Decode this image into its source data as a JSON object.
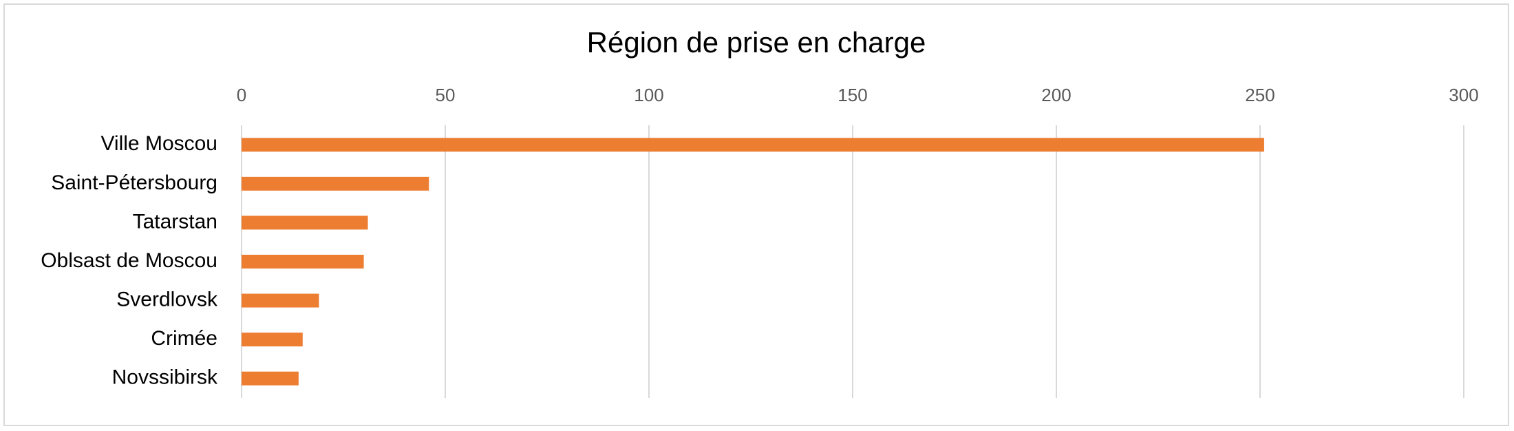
{
  "chart_data": {
    "type": "hbar",
    "title": "Région de prise en charge",
    "categories": [
      "Ville Moscou",
      "Saint-Pétersbourg",
      "Tatarstan",
      "Oblsast de Moscou",
      "Sverdlovsk",
      "Crimée",
      "Novssibirsk"
    ],
    "values": [
      251,
      46,
      31,
      30,
      19,
      15,
      14
    ],
    "color": "#ed7d31",
    "xlim": [
      0,
      300
    ],
    "xticks": [
      0,
      50,
      100,
      150,
      200,
      250,
      300
    ],
    "grid": true
  }
}
